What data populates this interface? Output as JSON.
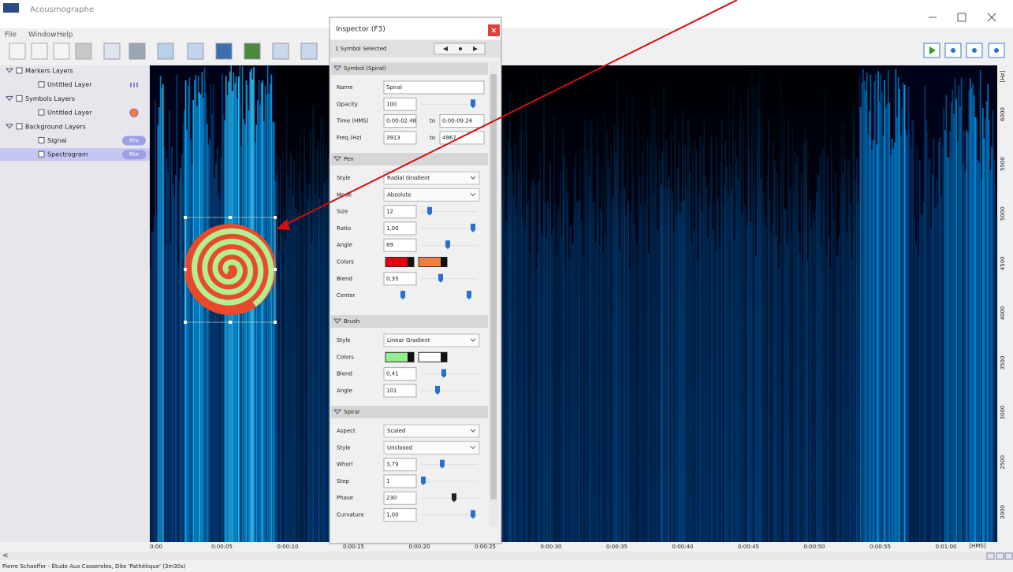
{
  "app": {
    "title": "Acousmographe",
    "menu": [
      "File",
      "Window",
      "Help"
    ]
  },
  "layers": {
    "groups": [
      {
        "label": "Markers Layers",
        "items": [
          {
            "label": "Untitled Layer"
          }
        ]
      },
      {
        "label": "Symbols Layers",
        "items": [
          {
            "label": "Untitled Layer"
          }
        ]
      },
      {
        "label": "Background Layers",
        "items": [
          {
            "label": "Signal",
            "badge": "Mix"
          },
          {
            "label": "Spectrogram",
            "badge": "Mix"
          }
        ]
      }
    ]
  },
  "axes": {
    "frequency": [
      "6000",
      "5500",
      "5000",
      "4500",
      "4000",
      "3500",
      "3000",
      "2500",
      "2000"
    ],
    "frequency_unit": "[Hz]",
    "time": [
      "0:00",
      "0:00:05",
      "0:00:10",
      "0:00:15",
      "0:00:20",
      "0:00:25",
      "0:00:30",
      "0:00:35",
      "0:00:40",
      "0:00:45",
      "0:00:50",
      "0:00:55",
      "0:01:00"
    ],
    "time_unit": "[HMS]"
  },
  "inspector": {
    "title": "Inspector (F3)",
    "selection": "1 Symbol Selected",
    "range_word": "to",
    "sections": [
      {
        "title": "Symbol (Spiral)",
        "rows": [
          {
            "label": "Name",
            "value": "Spiral"
          },
          {
            "label": "Opacity",
            "value": "100"
          },
          {
            "label": "Time (HMS)",
            "value": "0:00:02.48",
            "value2": "0:00:09.24"
          },
          {
            "label": "Freq (Hz)",
            "value": "3913",
            "value2": "4967"
          }
        ]
      },
      {
        "title": "Pen",
        "rows": [
          {
            "label": "Style",
            "value": "Radial Gradient"
          },
          {
            "label": "Mode",
            "value": "Absolute"
          },
          {
            "label": "Size",
            "value": "12"
          },
          {
            "label": "Ratio",
            "value": "1,00"
          },
          {
            "label": "Angle",
            "value": "89"
          },
          {
            "label": "Colors",
            "colors": [
              "#e00010",
              "#f08040"
            ]
          },
          {
            "label": "Blend",
            "value": "0,35"
          },
          {
            "label": "Center"
          }
        ]
      },
      {
        "title": "Brush",
        "rows": [
          {
            "label": "Style",
            "value": "Linear Gradient"
          },
          {
            "label": "Colors",
            "colors": [
              "#90ee90",
              "#ffffff"
            ]
          },
          {
            "label": "Blend",
            "value": "0,41"
          },
          {
            "label": "Angle",
            "value": "101"
          }
        ]
      },
      {
        "title": "Spiral",
        "rows": [
          {
            "label": "Aspect",
            "value": "Scaled"
          },
          {
            "label": "Style",
            "value": "Unclosed"
          },
          {
            "label": "Whorl",
            "value": "3,79"
          },
          {
            "label": "Step",
            "value": "1"
          },
          {
            "label": "Phase",
            "value": "230"
          },
          {
            "label": "Curvature",
            "value": "1,00"
          }
        ]
      }
    ]
  },
  "status": "Pierre Schaeffer - Étude Aux Casseroles, Dite 'Pathétique' (3m30s)"
}
